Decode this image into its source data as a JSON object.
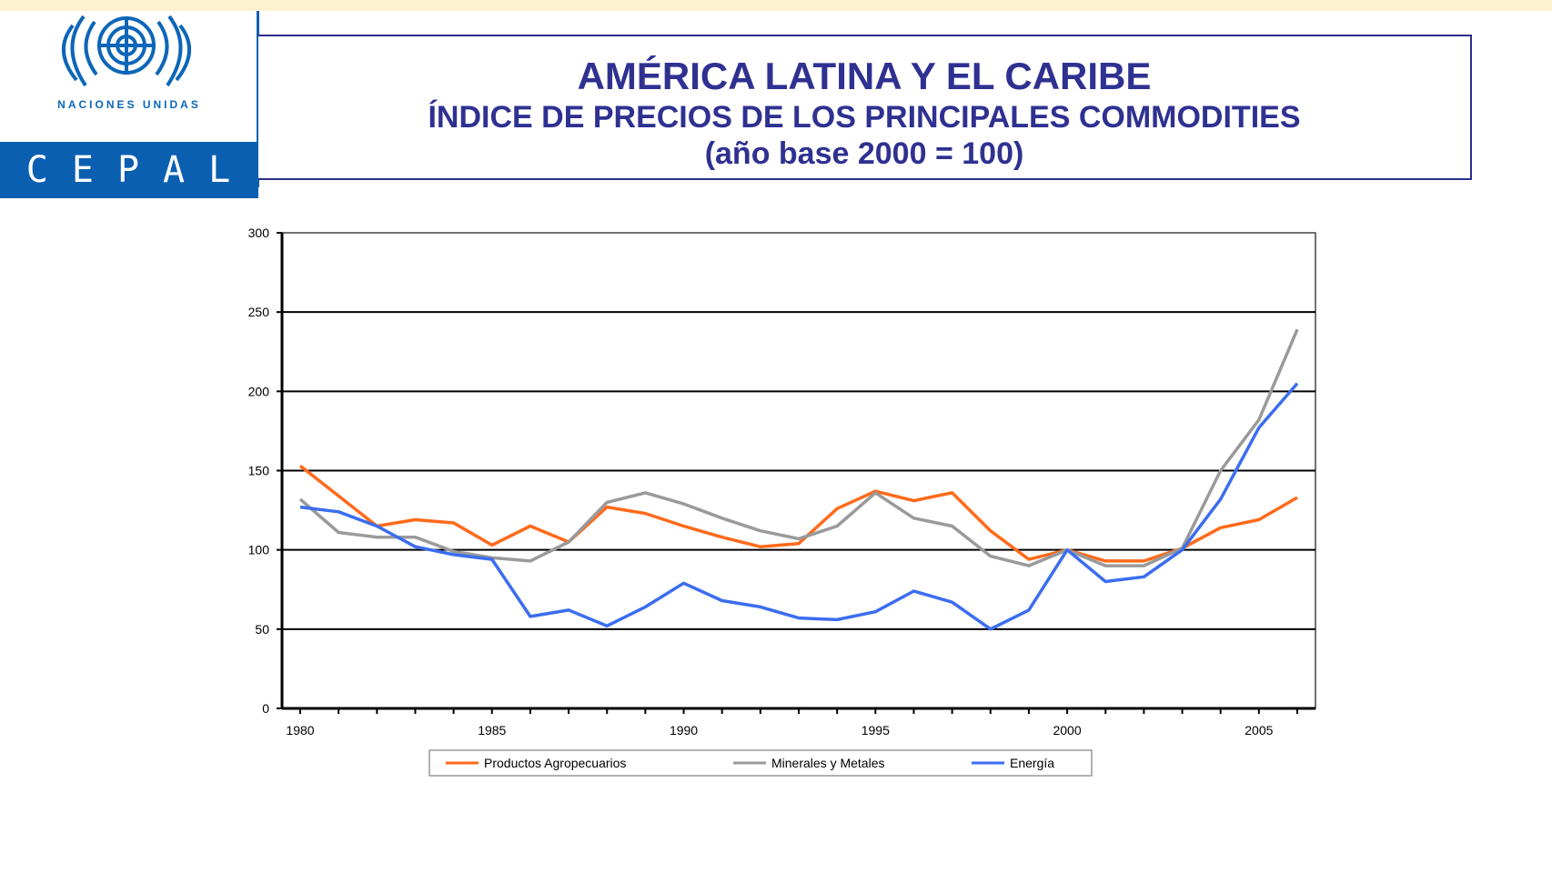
{
  "colors": {
    "strip": "#fdf2cf",
    "title_text": "#2f3191",
    "cepal_blue": "#0b5fb1",
    "un_blue": "#0d66b8",
    "agro": "#ff6a1a",
    "minerales": "#9a9a9a",
    "energia": "#3b6df0"
  },
  "logo": {
    "un_label": "NACIONES UNIDAS",
    "cepal_label": "CEPAL",
    "emblem_icon": "un-emblem-icon"
  },
  "title": {
    "main": "AMÉRICA LATINA Y EL CARIBE",
    "subtitle": "ÍNDICE DE PRECIOS DE LOS PRINCIPALES COMMODITIES",
    "base": "(año base 2000 = 100)"
  },
  "chart_data": {
    "type": "line",
    "x": [
      1980,
      1981,
      1982,
      1983,
      1984,
      1985,
      1986,
      1987,
      1988,
      1989,
      1990,
      1991,
      1992,
      1993,
      1994,
      1995,
      1996,
      1997,
      1998,
      1999,
      2000,
      2001,
      2002,
      2003,
      2004,
      2005,
      2006
    ],
    "series": [
      {
        "name": "Productos Agropecuarios",
        "color": "#ff6a1a",
        "values": [
          153,
          134,
          115,
          119,
          117,
          103,
          115,
          105,
          127,
          123,
          115,
          108,
          102,
          104,
          126,
          137,
          131,
          136,
          112,
          94,
          100,
          93,
          93,
          101,
          114,
          119,
          133
        ]
      },
      {
        "name": "Minerales y Metales",
        "color": "#9a9a9a",
        "values": [
          132,
          111,
          108,
          108,
          99,
          95,
          93,
          105,
          130,
          136,
          129,
          120,
          112,
          107,
          115,
          136,
          120,
          115,
          96,
          90,
          100,
          90,
          90,
          101,
          150,
          182,
          239
        ]
      },
      {
        "name": "Energía",
        "color": "#3b6df0",
        "values": [
          127,
          124,
          115,
          102,
          97,
          94,
          58,
          62,
          52,
          64,
          79,
          68,
          64,
          57,
          56,
          61,
          74,
          67,
          50,
          62,
          100,
          80,
          83,
          100,
          132,
          177,
          205
        ]
      }
    ],
    "ylim": [
      0,
      300
    ],
    "y_ticks": [
      0,
      50,
      100,
      150,
      200,
      250,
      300
    ],
    "x_tick_labels": [
      "1980",
      "1985",
      "1990",
      "1995",
      "2000",
      "2005"
    ],
    "grid": true,
    "legend": "bottom"
  }
}
